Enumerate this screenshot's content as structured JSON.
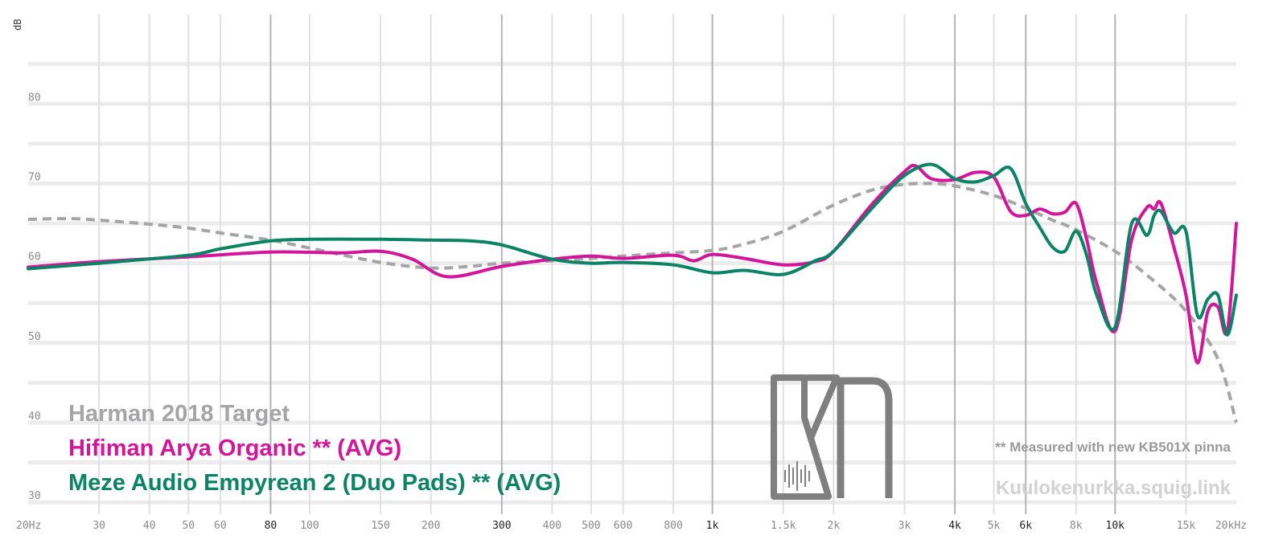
{
  "chart_data": {
    "type": "line",
    "ylabel": "dB",
    "ylim": [
      29,
      89
    ],
    "xscale": "log",
    "xlim": [
      20,
      20000
    ],
    "grid": true,
    "x_ticks": [
      {
        "value": 20,
        "label": "20Hz",
        "major": false
      },
      {
        "value": 30,
        "label": "30",
        "major": false
      },
      {
        "value": 40,
        "label": "40",
        "major": false
      },
      {
        "value": 50,
        "label": "50",
        "major": false
      },
      {
        "value": 60,
        "label": "60",
        "major": false
      },
      {
        "value": 80,
        "label": "80",
        "major": true
      },
      {
        "value": 100,
        "label": "100",
        "major": false
      },
      {
        "value": 150,
        "label": "150",
        "major": false
      },
      {
        "value": 200,
        "label": "200",
        "major": false
      },
      {
        "value": 300,
        "label": "300",
        "major": true
      },
      {
        "value": 400,
        "label": "400",
        "major": false
      },
      {
        "value": 500,
        "label": "500",
        "major": false
      },
      {
        "value": 600,
        "label": "600",
        "major": false
      },
      {
        "value": 800,
        "label": "800",
        "major": false
      },
      {
        "value": 1000,
        "label": "1k",
        "major": true
      },
      {
        "value": 1500,
        "label": "1.5k",
        "major": false
      },
      {
        "value": 2000,
        "label": "2k",
        "major": false
      },
      {
        "value": 3000,
        "label": "3k",
        "major": false
      },
      {
        "value": 4000,
        "label": "4k",
        "major": true
      },
      {
        "value": 5000,
        "label": "5k",
        "major": false
      },
      {
        "value": 6000,
        "label": "6k",
        "major": true
      },
      {
        "value": 8000,
        "label": "8k",
        "major": false
      },
      {
        "value": 10000,
        "label": "10k",
        "major": true
      },
      {
        "value": 15000,
        "label": "15k",
        "major": false
      },
      {
        "value": 20000,
        "label": "20kHz",
        "major": false
      }
    ],
    "y_ticks": [
      {
        "value": 30,
        "label": "30"
      },
      {
        "value": 40,
        "label": "40"
      },
      {
        "value": 50,
        "label": "50"
      },
      {
        "value": 60,
        "label": "60"
      },
      {
        "value": 70,
        "label": "70"
      },
      {
        "value": 80,
        "label": "80"
      }
    ],
    "series": [
      {
        "name": "Harman 2018 Target",
        "color": "#a5a5a7",
        "dashed": true,
        "points": [
          [
            20,
            65.5
          ],
          [
            25,
            65.6
          ],
          [
            30,
            65.4
          ],
          [
            40,
            64.9
          ],
          [
            50,
            64.4
          ],
          [
            60,
            63.8
          ],
          [
            80,
            62.9
          ],
          [
            100,
            61.9
          ],
          [
            150,
            60.1
          ],
          [
            200,
            59.4
          ],
          [
            250,
            59.6
          ],
          [
            300,
            60.0
          ],
          [
            400,
            60.3
          ],
          [
            500,
            60.6
          ],
          [
            600,
            60.9
          ],
          [
            800,
            61.3
          ],
          [
            1000,
            61.6
          ],
          [
            1200,
            62.4
          ],
          [
            1500,
            64.0
          ],
          [
            2000,
            67.3
          ],
          [
            2500,
            69.2
          ],
          [
            3000,
            69.9
          ],
          [
            3500,
            70.0
          ],
          [
            4000,
            69.7
          ],
          [
            5000,
            68.5
          ],
          [
            6000,
            66.9
          ],
          [
            7000,
            65.4
          ],
          [
            8000,
            64.2
          ],
          [
            10000,
            61.5
          ],
          [
            12000,
            58.5
          ],
          [
            15000,
            54.0
          ],
          [
            18000,
            48.0
          ],
          [
            20000,
            40.0
          ]
        ]
      },
      {
        "name": "Hifiman Arya Organic ** (AVG)",
        "color": "#d4149a",
        "dashed": false,
        "points": [
          [
            20,
            59.5
          ],
          [
            30,
            60.2
          ],
          [
            50,
            60.8
          ],
          [
            80,
            61.4
          ],
          [
            120,
            61.3
          ],
          [
            150,
            61.5
          ],
          [
            180,
            60.5
          ],
          [
            220,
            58.3
          ],
          [
            300,
            59.6
          ],
          [
            400,
            60.5
          ],
          [
            500,
            60.9
          ],
          [
            600,
            60.6
          ],
          [
            800,
            61.0
          ],
          [
            900,
            60.3
          ],
          [
            1000,
            61.1
          ],
          [
            1200,
            60.6
          ],
          [
            1500,
            59.8
          ],
          [
            1800,
            60.2
          ],
          [
            2000,
            61.5
          ],
          [
            2500,
            67.5
          ],
          [
            3000,
            71.5
          ],
          [
            3200,
            72.2
          ],
          [
            3500,
            70.6
          ],
          [
            4000,
            70.5
          ],
          [
            4500,
            71.4
          ],
          [
            5000,
            70.8
          ],
          [
            5500,
            66.5
          ],
          [
            6000,
            66.0
          ],
          [
            6500,
            66.8
          ],
          [
            7000,
            66.2
          ],
          [
            7500,
            66.4
          ],
          [
            8000,
            67.5
          ],
          [
            8500,
            63.0
          ],
          [
            9000,
            57.5
          ],
          [
            10000,
            51.5
          ],
          [
            11000,
            63.0
          ],
          [
            12000,
            67.0
          ],
          [
            12500,
            66.8
          ],
          [
            13000,
            67.5
          ],
          [
            14000,
            62.0
          ],
          [
            15000,
            56.0
          ],
          [
            16000,
            47.5
          ],
          [
            17000,
            54.0
          ],
          [
            18000,
            54.5
          ],
          [
            19000,
            51.5
          ],
          [
            20000,
            65.0
          ]
        ]
      },
      {
        "name": "Meze Audio Empyrean 2 (Duo Pads) ** (AVG)",
        "color": "#0b8465",
        "dashed": false,
        "points": [
          [
            20,
            59.3
          ],
          [
            30,
            60.0
          ],
          [
            50,
            61.0
          ],
          [
            60,
            61.8
          ],
          [
            80,
            62.8
          ],
          [
            100,
            63.0
          ],
          [
            150,
            63.0
          ],
          [
            200,
            62.9
          ],
          [
            250,
            62.8
          ],
          [
            300,
            62.3
          ],
          [
            400,
            60.5
          ],
          [
            500,
            60.0
          ],
          [
            600,
            60.1
          ],
          [
            800,
            59.8
          ],
          [
            1000,
            58.8
          ],
          [
            1200,
            59.1
          ],
          [
            1500,
            58.6
          ],
          [
            1800,
            60.3
          ],
          [
            2000,
            61.5
          ],
          [
            2500,
            67.0
          ],
          [
            3000,
            71.0
          ],
          [
            3500,
            72.4
          ],
          [
            4000,
            70.6
          ],
          [
            4500,
            70.2
          ],
          [
            5000,
            71.0
          ],
          [
            5500,
            71.9
          ],
          [
            6000,
            67.5
          ],
          [
            6500,
            64.5
          ],
          [
            7000,
            62.0
          ],
          [
            7500,
            61.5
          ],
          [
            8000,
            64.0
          ],
          [
            8500,
            61.0
          ],
          [
            9000,
            56.0
          ],
          [
            10000,
            52.0
          ],
          [
            11000,
            65.0
          ],
          [
            12000,
            63.5
          ],
          [
            12500,
            66.0
          ],
          [
            13000,
            66.5
          ],
          [
            14000,
            63.8
          ],
          [
            15000,
            64.0
          ],
          [
            16000,
            53.5
          ],
          [
            17000,
            55.5
          ],
          [
            18000,
            56.0
          ],
          [
            19000,
            51.0
          ],
          [
            20000,
            56.0
          ]
        ]
      }
    ]
  },
  "legend": {
    "target_label": "Harman 2018 Target",
    "target_color": "#a5a5a7",
    "series1_label": "Hifiman Arya Organic ** (AVG)",
    "series1_color": "#d4149a",
    "series2_label": "Meze Audio Empyrean 2 (Duo Pads) ** (AVG)",
    "series2_color": "#0b8465"
  },
  "annotations": {
    "footnote": "** Measured with new KB501X pinna",
    "site": "Kuulokenurkka.squig.link",
    "logo": "KN"
  }
}
